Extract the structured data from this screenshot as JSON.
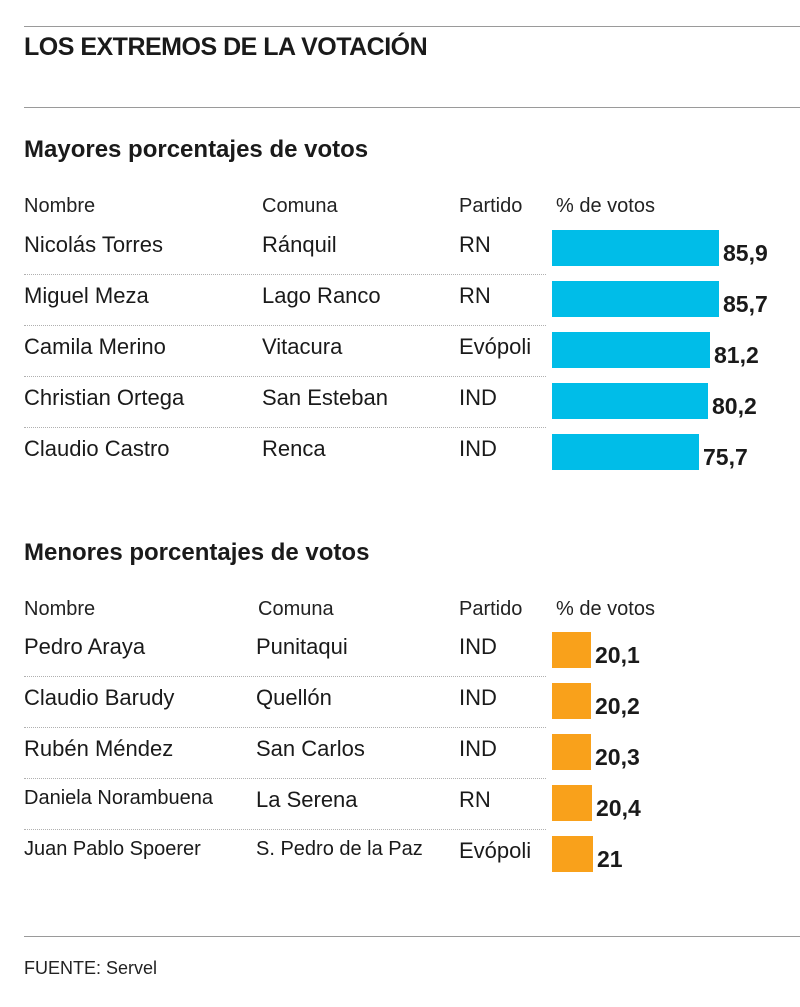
{
  "title": "LOS EXTREMOS DE LA VOTACIÓN",
  "headers": {
    "name": "Nombre",
    "commune": "Comuna",
    "party": "Partido",
    "votes": "% de votos"
  },
  "chart_data": [
    {
      "type": "bar",
      "title": "Mayores porcentajes de votos",
      "color": "#00bde8",
      "rows": [
        {
          "name": "Nicolás Torres",
          "commune": "Ránquil",
          "party": "RN",
          "value": 85.9,
          "label": "85,9"
        },
        {
          "name": "Miguel Meza",
          "commune": "Lago Ranco",
          "party": "RN",
          "value": 85.7,
          "label": "85,7"
        },
        {
          "name": "Camila Merino",
          "commune": "Vitacura",
          "party": "Evópoli",
          "value": 81.2,
          "label": "81,2"
        },
        {
          "name": "Christian Ortega",
          "commune": "San Esteban",
          "party": "IND",
          "value": 80.2,
          "label": "80,2"
        },
        {
          "name": "Claudio Castro",
          "commune": "Renca",
          "party": "IND",
          "value": 75.7,
          "label": "75,7"
        }
      ]
    },
    {
      "type": "bar",
      "title": "Menores porcentajes de votos",
      "color": "#f9a11b",
      "rows": [
        {
          "name": "Pedro Araya",
          "commune": "Punitaqui",
          "party": "IND",
          "value": 20.1,
          "label": "20,1"
        },
        {
          "name": "Claudio Barudy",
          "commune": "Quellón",
          "party": "IND",
          "value": 20.2,
          "label": "20,2"
        },
        {
          "name": "Rubén Méndez",
          "commune": "San Carlos",
          "party": "IND",
          "value": 20.3,
          "label": "20,3"
        },
        {
          "name": "Daniela Norambuena",
          "commune": "La Serena",
          "party": "RN",
          "value": 20.4,
          "label": "20,4"
        },
        {
          "name": "Juan Pablo Spoerer",
          "commune": "S. Pedro de la Paz",
          "party": "Evópoli",
          "value": 21,
          "label": "21"
        }
      ]
    }
  ],
  "source": "FUENTE: Servel"
}
